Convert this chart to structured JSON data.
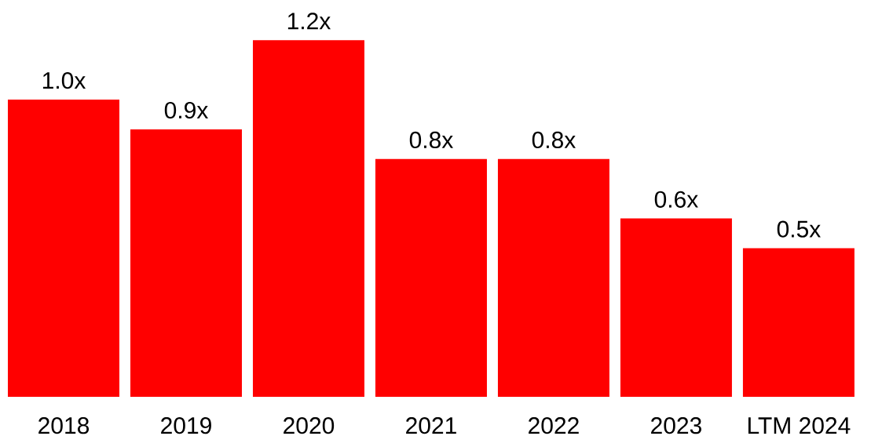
{
  "chart_data": {
    "type": "bar",
    "categories": [
      "2018",
      "2019",
      "2020",
      "2021",
      "2022",
      "2023",
      "LTM 2024"
    ],
    "values": [
      1.0,
      0.9,
      1.2,
      0.8,
      0.8,
      0.6,
      0.5
    ],
    "value_labels": [
      "1.0x",
      "0.9x",
      "1.2x",
      "0.8x",
      "0.8x",
      "0.6x",
      "0.5x"
    ],
    "color": "#ff0000"
  }
}
